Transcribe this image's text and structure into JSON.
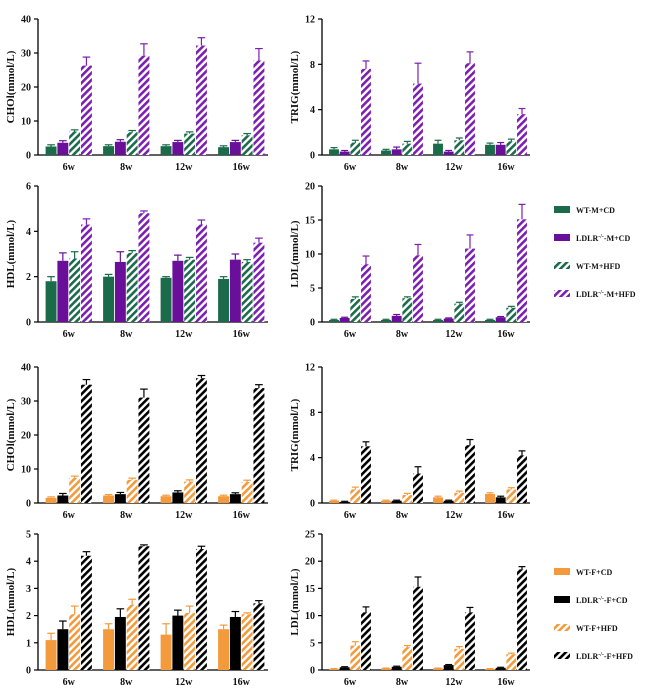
{
  "panels": [
    {
      "id": "m-chol",
      "ylabel": "CHOl(mmol/L)",
      "ylim": [
        0,
        40
      ],
      "ticks": [
        0,
        10,
        20,
        30,
        40
      ],
      "categories": [
        "6w",
        "8w",
        "12w",
        "16w"
      ],
      "legend": "male",
      "series": [
        {
          "name": "WT-M+CD",
          "values": [
            2.5,
            2.6,
            2.6,
            2.3
          ],
          "errors": [
            0.5,
            0.4,
            0.4,
            0.4
          ]
        },
        {
          "name": "LDLR-/--M+CD",
          "values": [
            3.6,
            3.9,
            3.8,
            3.8
          ],
          "errors": [
            0.6,
            0.6,
            0.5,
            0.5
          ]
        },
        {
          "name": "WT-M+HFD",
          "values": [
            6.9,
            6.7,
            6.3,
            5.8
          ],
          "errors": [
            0.5,
            0.5,
            0.5,
            0.5
          ]
        },
        {
          "name": "LDLR-/--M+HFD",
          "values": [
            26.3,
            29.2,
            32.2,
            27.8
          ],
          "errors": [
            2.5,
            3.5,
            2.3,
            3.5
          ]
        }
      ]
    },
    {
      "id": "m-trig",
      "ylabel": "TRIG(mmol/L)",
      "ylim": [
        0,
        12
      ],
      "ticks": [
        0,
        4,
        8,
        12
      ],
      "categories": [
        "6w",
        "8w",
        "12w",
        "16w"
      ],
      "legend": "male",
      "series": [
        {
          "name": "WT-M+CD",
          "values": [
            0.5,
            0.4,
            1.0,
            0.9
          ],
          "errors": [
            0.15,
            0.1,
            0.3,
            0.15
          ]
        },
        {
          "name": "LDLR-/--M+CD",
          "values": [
            0.3,
            0.5,
            0.3,
            0.9
          ],
          "errors": [
            0.1,
            0.2,
            0.1,
            0.2
          ]
        },
        {
          "name": "WT-M+HFD",
          "values": [
            1.1,
            1.0,
            1.3,
            1.2
          ],
          "errors": [
            0.2,
            0.2,
            0.2,
            0.2
          ]
        },
        {
          "name": "LDLR-/--M+HFD",
          "values": [
            7.6,
            6.3,
            8.1,
            3.6
          ],
          "errors": [
            0.7,
            1.8,
            1.0,
            0.5
          ]
        }
      ]
    },
    {
      "id": "m-hdl",
      "ylabel": "HDL(mmol/L)",
      "ylim": [
        0,
        6
      ],
      "ticks": [
        0,
        2,
        4,
        6
      ],
      "categories": [
        "6w",
        "8w",
        "12w",
        "16w"
      ],
      "legend": "male",
      "series": [
        {
          "name": "WT-M+CD",
          "values": [
            1.8,
            2.0,
            1.95,
            1.9
          ],
          "errors": [
            0.2,
            0.1,
            0.05,
            0.1
          ]
        },
        {
          "name": "LDLR-/--M+CD",
          "values": [
            2.7,
            2.65,
            2.7,
            2.75
          ],
          "errors": [
            0.35,
            0.45,
            0.25,
            0.25
          ]
        },
        {
          "name": "WT-M+HFD",
          "values": [
            2.8,
            3.05,
            2.75,
            2.65
          ],
          "errors": [
            0.3,
            0.1,
            0.1,
            0.1
          ]
        },
        {
          "name": "LDLR-/--M+HFD",
          "values": [
            4.3,
            4.8,
            4.3,
            3.5
          ],
          "errors": [
            0.25,
            0.1,
            0.2,
            0.2
          ]
        }
      ]
    },
    {
      "id": "m-ldl",
      "ylabel": "LDL(mmol/L)",
      "ylim": [
        0,
        20
      ],
      "ticks": [
        0,
        5,
        10,
        15,
        20
      ],
      "categories": [
        "6w",
        "8w",
        "12w",
        "16w"
      ],
      "legend": "male",
      "series": [
        {
          "name": "WT-M+CD",
          "values": [
            0.3,
            0.3,
            0.3,
            0.3
          ],
          "errors": [
            0.1,
            0.1,
            0.1,
            0.1
          ]
        },
        {
          "name": "LDLR-/--M+CD",
          "values": [
            0.6,
            0.9,
            0.5,
            0.7
          ],
          "errors": [
            0.1,
            0.2,
            0.1,
            0.1
          ]
        },
        {
          "name": "WT-M+HFD",
          "values": [
            3.4,
            3.5,
            2.7,
            2.1
          ],
          "errors": [
            0.3,
            0.2,
            0.2,
            0.2
          ]
        },
        {
          "name": "LDLR-/--M+HFD",
          "values": [
            8.5,
            9.8,
            10.8,
            15.1
          ],
          "errors": [
            1.2,
            1.6,
            2.0,
            2.2
          ]
        }
      ]
    },
    {
      "id": "f-chol",
      "ylabel": "CHOl(mmol/L)",
      "ylim": [
        0,
        40
      ],
      "ticks": [
        0,
        10,
        20,
        30,
        40
      ],
      "categories": [
        "6w",
        "8w",
        "12w",
        "16w"
      ],
      "legend": "female",
      "series": [
        {
          "name": "WT-F+CD",
          "values": [
            1.5,
            2.2,
            2.0,
            2.0
          ],
          "errors": [
            0.3,
            0.3,
            0.3,
            0.3
          ]
        },
        {
          "name": "LDLR-/--F+CD",
          "values": [
            2.2,
            2.6,
            3.1,
            2.6
          ],
          "errors": [
            0.6,
            0.5,
            0.5,
            0.4
          ]
        },
        {
          "name": "WT-F+HFD",
          "values": [
            7.4,
            6.8,
            6.3,
            6.2
          ],
          "errors": [
            0.5,
            0.5,
            0.5,
            0.5
          ]
        },
        {
          "name": "LDLR-/--F+HFD",
          "values": [
            34.8,
            31.0,
            36.7,
            33.8
          ],
          "errors": [
            1.5,
            2.5,
            0.8,
            1.0
          ]
        }
      ]
    },
    {
      "id": "f-trig",
      "ylabel": "TRIG(mmol/L)",
      "ylim": [
        0,
        12
      ],
      "ticks": [
        0,
        4,
        8,
        12
      ],
      "categories": [
        "6w",
        "8w",
        "12w",
        "16w"
      ],
      "legend": "female",
      "series": [
        {
          "name": "WT-F+CD",
          "values": [
            0.2,
            0.2,
            0.5,
            0.8
          ],
          "errors": [
            0.05,
            0.05,
            0.1,
            0.1
          ]
        },
        {
          "name": "LDLR-/--F+CD",
          "values": [
            0.1,
            0.2,
            0.2,
            0.5
          ],
          "errors": [
            0.05,
            0.05,
            0.05,
            0.1
          ]
        },
        {
          "name": "WT-F+HFD",
          "values": [
            1.2,
            0.7,
            0.9,
            1.2
          ],
          "errors": [
            0.2,
            0.15,
            0.15,
            0.15
          ]
        },
        {
          "name": "LDLR-/--F+HFD",
          "values": [
            5.0,
            2.6,
            5.1,
            4.2
          ],
          "errors": [
            0.4,
            0.6,
            0.5,
            0.4
          ]
        }
      ]
    },
    {
      "id": "f-hdl",
      "ylabel": "HDL(mmol/L)",
      "ylim": [
        0,
        5
      ],
      "ticks": [
        0,
        1,
        2,
        3,
        4,
        5
      ],
      "categories": [
        "6w",
        "8w",
        "12w",
        "16w"
      ],
      "legend": "female",
      "series": [
        {
          "name": "WT-F+CD",
          "values": [
            1.1,
            1.5,
            1.3,
            1.5
          ],
          "errors": [
            0.25,
            0.2,
            0.4,
            0.15
          ]
        },
        {
          "name": "LDLR-/--F+CD",
          "values": [
            1.5,
            1.95,
            2.0,
            1.95
          ],
          "errors": [
            0.3,
            0.3,
            0.2,
            0.2
          ]
        },
        {
          "name": "WT-F+HFD",
          "values": [
            2.05,
            2.4,
            2.1,
            2.05
          ],
          "errors": [
            0.3,
            0.2,
            0.25,
            0.05
          ]
        },
        {
          "name": "LDLR-/--F+HFD",
          "values": [
            4.2,
            4.55,
            4.45,
            2.45
          ],
          "errors": [
            0.15,
            0.05,
            0.1,
            0.1
          ]
        }
      ]
    },
    {
      "id": "f-ldl",
      "ylabel": "LDL(mmol/L)",
      "ylim": [
        0,
        25
      ],
      "ticks": [
        0,
        5,
        10,
        15,
        20,
        25
      ],
      "categories": [
        "6w",
        "8w",
        "12w",
        "16w"
      ],
      "legend": "female",
      "series": [
        {
          "name": "WT-F+CD",
          "values": [
            0.2,
            0.3,
            0.3,
            0.2
          ],
          "errors": [
            0.05,
            0.05,
            0.05,
            0.05
          ]
        },
        {
          "name": "LDLR-/--F+CD",
          "values": [
            0.5,
            0.6,
            0.9,
            0.4
          ],
          "errors": [
            0.1,
            0.1,
            0.1,
            0.1
          ]
        },
        {
          "name": "WT-F+HFD",
          "values": [
            4.5,
            4.2,
            3.9,
            2.9
          ],
          "errors": [
            0.7,
            0.3,
            0.4,
            0.2
          ]
        },
        {
          "name": "LDLR-/--F+HFD",
          "values": [
            10.6,
            15.3,
            10.6,
            18.5
          ],
          "errors": [
            1.0,
            1.8,
            0.9,
            0.5
          ]
        }
      ]
    }
  ],
  "legends": {
    "male": [
      {
        "name": "WT-M+CD",
        "prefix": "WT",
        "sup": "",
        "suffix": "-M+CD",
        "color": "#1b6b4a",
        "hatch": false
      },
      {
        "name": "LDLR-/--M+CD",
        "prefix": "LDLR",
        "sup": "-/-",
        "suffix": "-M+CD",
        "color": "#6a0f9a",
        "hatch": false
      },
      {
        "name": "WT-M+HFD",
        "prefix": "WT",
        "sup": "",
        "suffix": "-M+HFD",
        "color": "#1b6b4a",
        "hatch": true
      },
      {
        "name": "LDLR-/--M+HFD",
        "prefix": "LDLR",
        "sup": "-/-",
        "suffix": "-M+HFD",
        "color": "#7b1fb0",
        "hatch": true
      }
    ],
    "female": [
      {
        "name": "WT-F+CD",
        "prefix": "WT",
        "sup": "",
        "suffix": "-F+CD",
        "color": "#f39a3c",
        "hatch": false
      },
      {
        "name": "LDLR-/--F+CD",
        "prefix": "LDLR",
        "sup": "-/-",
        "suffix": "-F+CD",
        "color": "#000000",
        "hatch": false
      },
      {
        "name": "WT-F+HFD",
        "prefix": "WT",
        "sup": "",
        "suffix": "-F+HFD",
        "color": "#f39a3c",
        "hatch": true
      },
      {
        "name": "LDLR-/--F+HFD",
        "prefix": "LDLR",
        "sup": "-/-",
        "suffix": "-F+HFD",
        "color": "#000000",
        "hatch": true
      }
    ]
  },
  "colors": {
    "male": [
      "#1b6b4a",
      "#6a0f9a",
      "#1b6b4a",
      "#7b1fb0"
    ],
    "female": [
      "#f39a3c",
      "#000000",
      "#f39a3c",
      "#000000"
    ]
  },
  "hatched": [
    false,
    false,
    true,
    true
  ],
  "chart_data": [
    {
      "type": "bar",
      "title": "",
      "ylabel": "CHOl(mmol/L)",
      "xlabel": "",
      "categories": [
        "6w",
        "8w",
        "12w",
        "16w"
      ],
      "ylim": [
        0,
        40
      ],
      "series": [
        {
          "name": "WT-M+CD",
          "values": [
            2.5,
            2.6,
            2.6,
            2.3
          ]
        },
        {
          "name": "LDLR-/--M+CD",
          "values": [
            3.6,
            3.9,
            3.8,
            3.8
          ]
        },
        {
          "name": "WT-M+HFD",
          "values": [
            6.9,
            6.7,
            6.3,
            5.8
          ]
        },
        {
          "name": "LDLR-/--M+HFD",
          "values": [
            26.3,
            29.2,
            32.2,
            27.8
          ]
        }
      ]
    },
    {
      "type": "bar",
      "title": "",
      "ylabel": "TRIG(mmol/L)",
      "xlabel": "",
      "categories": [
        "6w",
        "8w",
        "12w",
        "16w"
      ],
      "ylim": [
        0,
        12
      ],
      "series": [
        {
          "name": "WT-M+CD",
          "values": [
            0.5,
            0.4,
            1.0,
            0.9
          ]
        },
        {
          "name": "LDLR-/--M+CD",
          "values": [
            0.3,
            0.5,
            0.3,
            0.9
          ]
        },
        {
          "name": "WT-M+HFD",
          "values": [
            1.1,
            1.0,
            1.3,
            1.2
          ]
        },
        {
          "name": "LDLR-/--M+HFD",
          "values": [
            7.6,
            6.3,
            8.1,
            3.6
          ]
        }
      ]
    },
    {
      "type": "bar",
      "title": "",
      "ylabel": "HDL(mmol/L)",
      "xlabel": "",
      "categories": [
        "6w",
        "8w",
        "12w",
        "16w"
      ],
      "ylim": [
        0,
        6
      ],
      "series": [
        {
          "name": "WT-M+CD",
          "values": [
            1.8,
            2.0,
            1.95,
            1.9
          ]
        },
        {
          "name": "LDLR-/--M+CD",
          "values": [
            2.7,
            2.65,
            2.7,
            2.75
          ]
        },
        {
          "name": "WT-M+HFD",
          "values": [
            2.8,
            3.05,
            2.75,
            2.65
          ]
        },
        {
          "name": "LDLR-/--M+HFD",
          "values": [
            4.3,
            4.8,
            4.3,
            3.5
          ]
        }
      ]
    },
    {
      "type": "bar",
      "title": "",
      "ylabel": "LDL(mmol/L)",
      "xlabel": "",
      "categories": [
        "6w",
        "8w",
        "12w",
        "16w"
      ],
      "ylim": [
        0,
        20
      ],
      "series": [
        {
          "name": "WT-M+CD",
          "values": [
            0.3,
            0.3,
            0.3,
            0.3
          ]
        },
        {
          "name": "LDLR-/--M+CD",
          "values": [
            0.6,
            0.9,
            0.5,
            0.7
          ]
        },
        {
          "name": "WT-M+HFD",
          "values": [
            3.4,
            3.5,
            2.7,
            2.1
          ]
        },
        {
          "name": "LDLR-/--M+HFD",
          "values": [
            8.5,
            9.8,
            10.8,
            15.1
          ]
        }
      ]
    },
    {
      "type": "bar",
      "title": "",
      "ylabel": "CHOl(mmol/L)",
      "xlabel": "",
      "categories": [
        "6w",
        "8w",
        "12w",
        "16w"
      ],
      "ylim": [
        0,
        40
      ],
      "series": [
        {
          "name": "WT-F+CD",
          "values": [
            1.5,
            2.2,
            2.0,
            2.0
          ]
        },
        {
          "name": "LDLR-/--F+CD",
          "values": [
            2.2,
            2.6,
            3.1,
            2.6
          ]
        },
        {
          "name": "WT-F+HFD",
          "values": [
            7.4,
            6.8,
            6.3,
            6.2
          ]
        },
        {
          "name": "LDLR-/--F+HFD",
          "values": [
            34.8,
            31.0,
            36.7,
            33.8
          ]
        }
      ]
    },
    {
      "type": "bar",
      "title": "",
      "ylabel": "TRIG(mmol/L)",
      "xlabel": "",
      "categories": [
        "6w",
        "8w",
        "12w",
        "16w"
      ],
      "ylim": [
        0,
        12
      ],
      "series": [
        {
          "name": "WT-F+CD",
          "values": [
            0.2,
            0.2,
            0.5,
            0.8
          ]
        },
        {
          "name": "LDLR-/--F+CD",
          "values": [
            0.1,
            0.2,
            0.2,
            0.5
          ]
        },
        {
          "name": "WT-F+HFD",
          "values": [
            1.2,
            0.7,
            0.9,
            1.2
          ]
        },
        {
          "name": "LDLR-/--F+HFD",
          "values": [
            5.0,
            2.6,
            5.1,
            4.2
          ]
        }
      ]
    },
    {
      "type": "bar",
      "title": "",
      "ylabel": "HDL(mmol/L)",
      "xlabel": "",
      "categories": [
        "6w",
        "8w",
        "12w",
        "16w"
      ],
      "ylim": [
        0,
        5
      ],
      "series": [
        {
          "name": "WT-F+CD",
          "values": [
            1.1,
            1.5,
            1.3,
            1.5
          ]
        },
        {
          "name": "LDLR-/--F+CD",
          "values": [
            1.5,
            1.95,
            2.0,
            1.95
          ]
        },
        {
          "name": "WT-F+HFD",
          "values": [
            2.05,
            2.4,
            2.1,
            2.05
          ]
        },
        {
          "name": "LDLR-/--F+HFD",
          "values": [
            4.2,
            4.55,
            4.45,
            2.45
          ]
        }
      ]
    },
    {
      "type": "bar",
      "title": "",
      "ylabel": "LDL(mmol/L)",
      "xlabel": "",
      "categories": [
        "6w",
        "8w",
        "12w",
        "16w"
      ],
      "ylim": [
        0,
        25
      ],
      "series": [
        {
          "name": "WT-F+CD",
          "values": [
            0.2,
            0.3,
            0.3,
            0.2
          ]
        },
        {
          "name": "LDLR-/--F+CD",
          "values": [
            0.5,
            0.6,
            0.9,
            0.4
          ]
        },
        {
          "name": "WT-F+HFD",
          "values": [
            4.5,
            4.2,
            3.9,
            2.9
          ]
        },
        {
          "name": "LDLR-/--F+HFD",
          "values": [
            10.6,
            15.3,
            10.6,
            18.5
          ]
        }
      ]
    }
  ]
}
